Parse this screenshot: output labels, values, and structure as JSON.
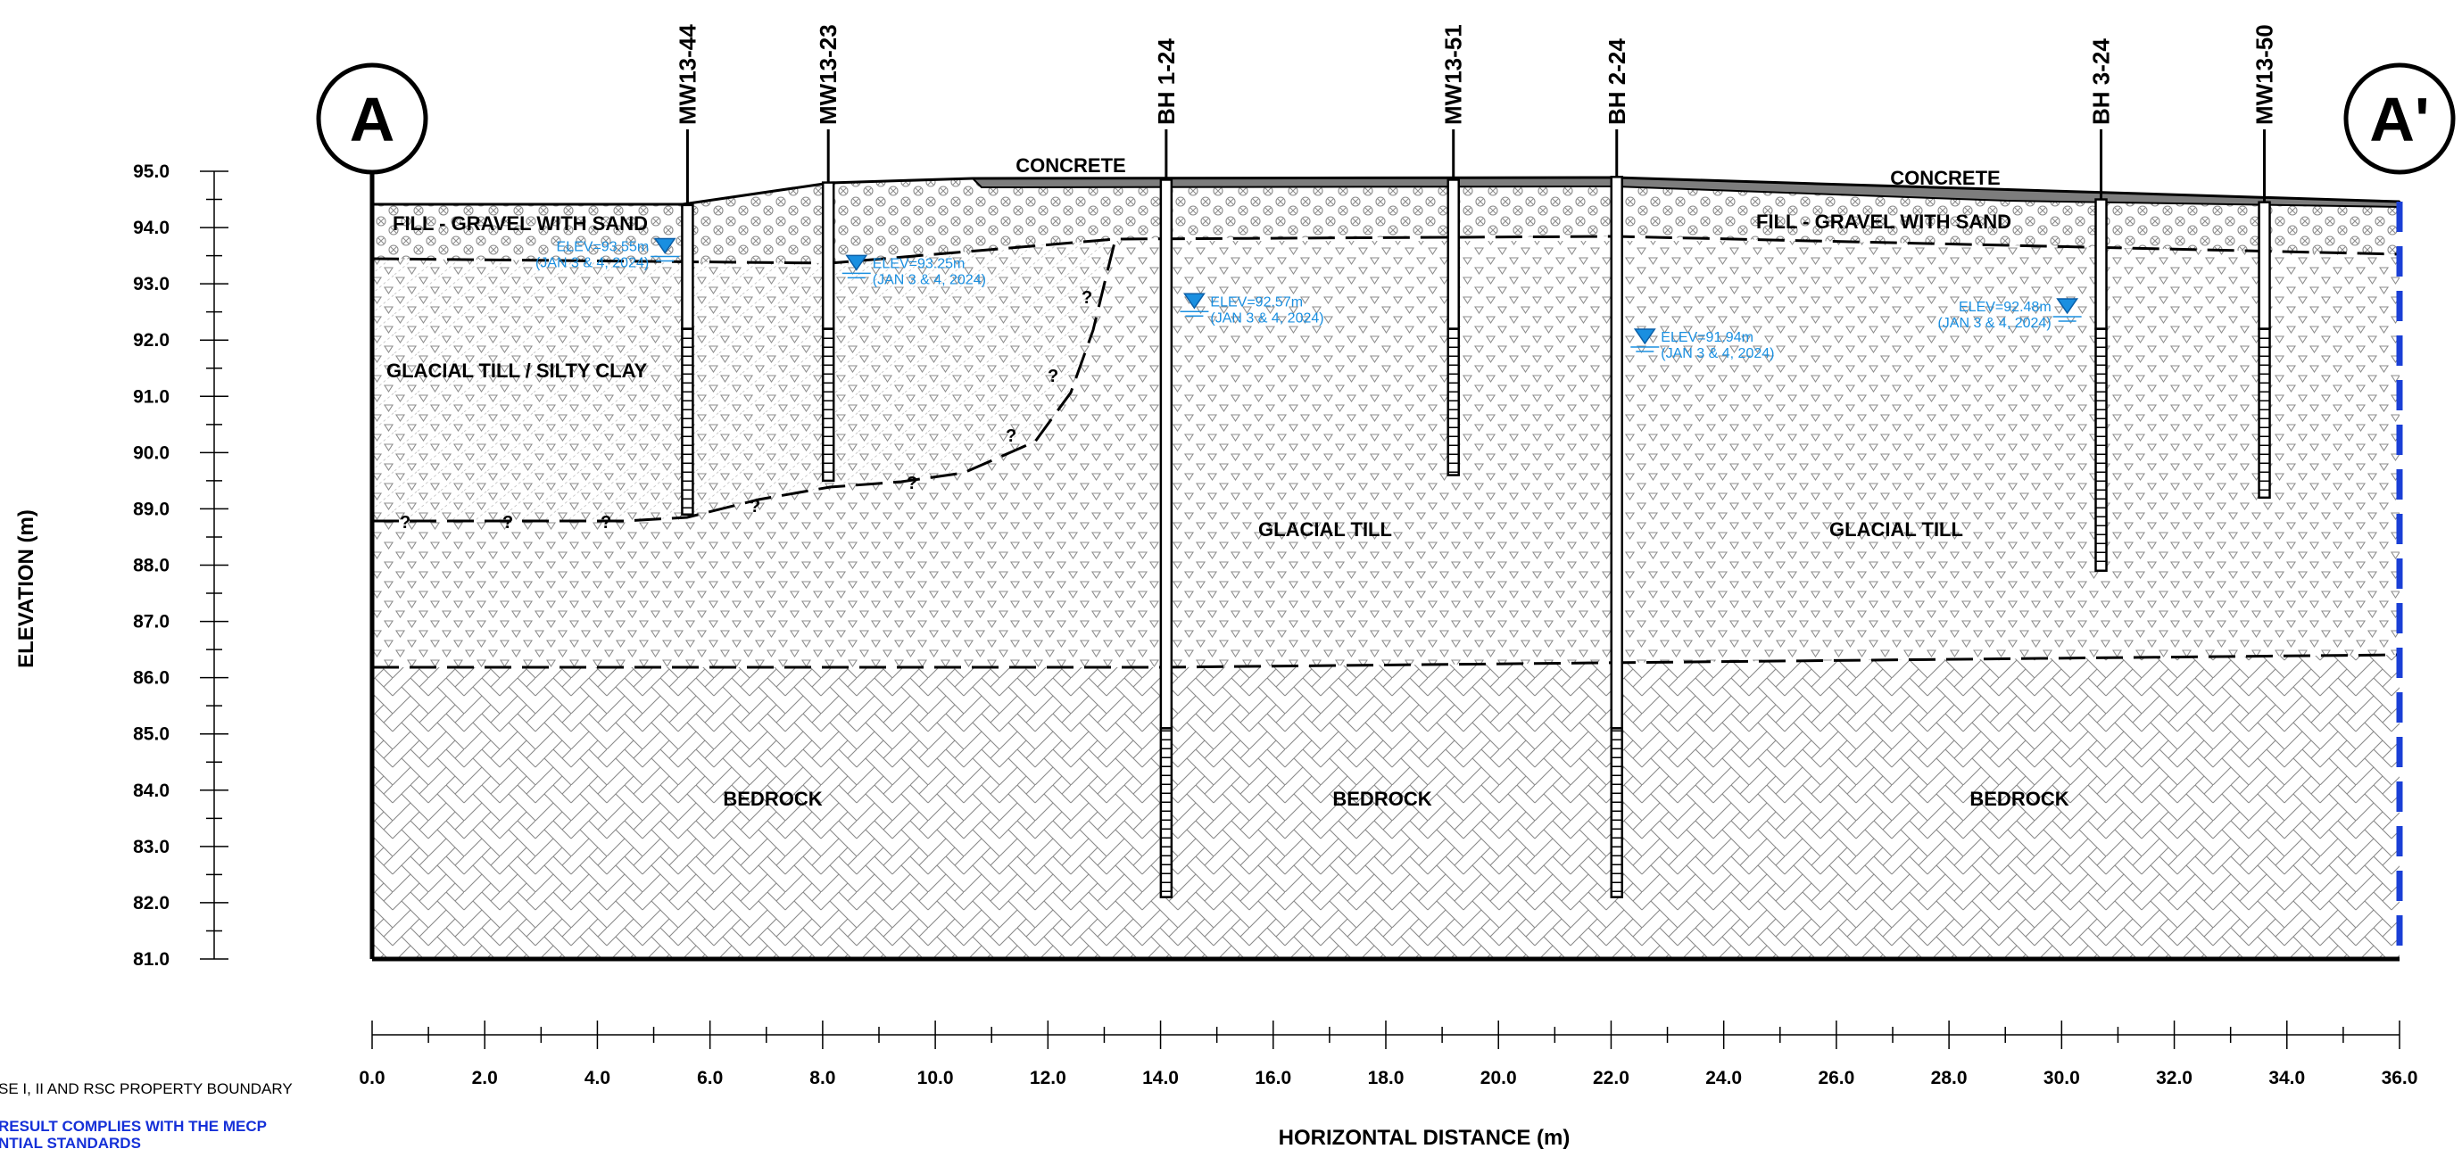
{
  "section": {
    "marker_left": "A",
    "marker_right": "A'",
    "xlabel": "HORIZONTAL DISTANCE (m)",
    "ylabel": "ELEVATION (m)",
    "x_ticks": [
      "0.0",
      "2.0",
      "4.0",
      "6.0",
      "8.0",
      "10.0",
      "12.0",
      "14.0",
      "16.0",
      "18.0",
      "20.0",
      "22.0",
      "24.0",
      "26.0",
      "28.0",
      "30.0",
      "32.0",
      "34.0",
      "36.0"
    ],
    "y_ticks": [
      "95.0",
      "94.0",
      "93.0",
      "92.0",
      "91.0",
      "90.0",
      "89.0",
      "88.0",
      "87.0",
      "86.0",
      "85.0",
      "84.0",
      "83.0",
      "82.0",
      "81.0"
    ],
    "xlim": [
      0,
      36
    ],
    "ylim": [
      81,
      95
    ]
  },
  "units": [
    {
      "id": "concrete-1",
      "label": "CONCRETE"
    },
    {
      "id": "concrete-2",
      "label": "CONCRETE"
    },
    {
      "id": "fill-1",
      "label": "FILL - GRAVEL WITH SAND"
    },
    {
      "id": "fill-2",
      "label": "FILL - GRAVEL WITH SAND"
    },
    {
      "id": "clay",
      "label": "GLACIAL TILL / SILTY CLAY"
    },
    {
      "id": "till-1",
      "label": "GLACIAL TILL"
    },
    {
      "id": "till-2",
      "label": "GLACIAL TILL"
    },
    {
      "id": "bedrock-1",
      "label": "BEDROCK"
    },
    {
      "id": "bedrock-2",
      "label": "BEDROCK"
    },
    {
      "id": "bedrock-3",
      "label": "BEDROCK"
    }
  ],
  "wells": [
    {
      "name": "MW13-44",
      "x": 5.6,
      "top": 94.4,
      "bottom": 88.9,
      "screen_top": 92.2
    },
    {
      "name": "MW13-23",
      "x": 8.1,
      "top": 94.8,
      "bottom": 89.5,
      "screen_top": 92.2
    },
    {
      "name": "BH 1-24",
      "x": 14.1,
      "top": 94.85,
      "bottom": 82.1,
      "screen_top": 85.1
    },
    {
      "name": "MW13-51",
      "x": 19.2,
      "top": 94.85,
      "bottom": 89.6,
      "screen_top": 92.2
    },
    {
      "name": "BH 2-24",
      "x": 22.1,
      "top": 94.9,
      "bottom": 82.1,
      "screen_top": 85.1
    },
    {
      "name": "BH 3-24",
      "x": 30.7,
      "top": 94.5,
      "bottom": 87.9,
      "screen_top": 92.2
    },
    {
      "name": "MW13-50",
      "x": 33.6,
      "top": 94.45,
      "bottom": 89.2,
      "screen_top": 92.2
    }
  ],
  "water_levels": [
    {
      "elev": "ELEV=93.55m",
      "date": "(JAN 3 & 4, 2024)",
      "x": 5.2,
      "y": 93.55
    },
    {
      "elev": "ELEV=93.25m",
      "date": "(JAN 3 & 4, 2024)",
      "x": 8.6,
      "y": 93.25
    },
    {
      "elev": "ELEV=92.57m",
      "date": "(JAN 3 & 4, 2024)",
      "x": 14.6,
      "y": 92.57
    },
    {
      "elev": "ELEV=91.94m",
      "date": "(JAN 3 & 4, 2024)",
      "x": 22.6,
      "y": 91.94
    },
    {
      "elev": "ELEV=92.48m",
      "date": "(JAN 3 & 4, 2024)",
      "x": 30.1,
      "y": 92.48
    }
  ],
  "legend": {
    "boundary": "SE I, II AND RSC PROPERTY BOUNDARY",
    "complies_line1": "RESULT COMPLIES WITH THE MECP",
    "complies_line2": "NTIAL STANDARDS"
  },
  "colors": {
    "boundary_blue": "#1a3fd6",
    "water_blue": "#1a8fe0",
    "concrete_grey": "#7d7d7d",
    "hatch_grey": "#9a9a9a"
  }
}
